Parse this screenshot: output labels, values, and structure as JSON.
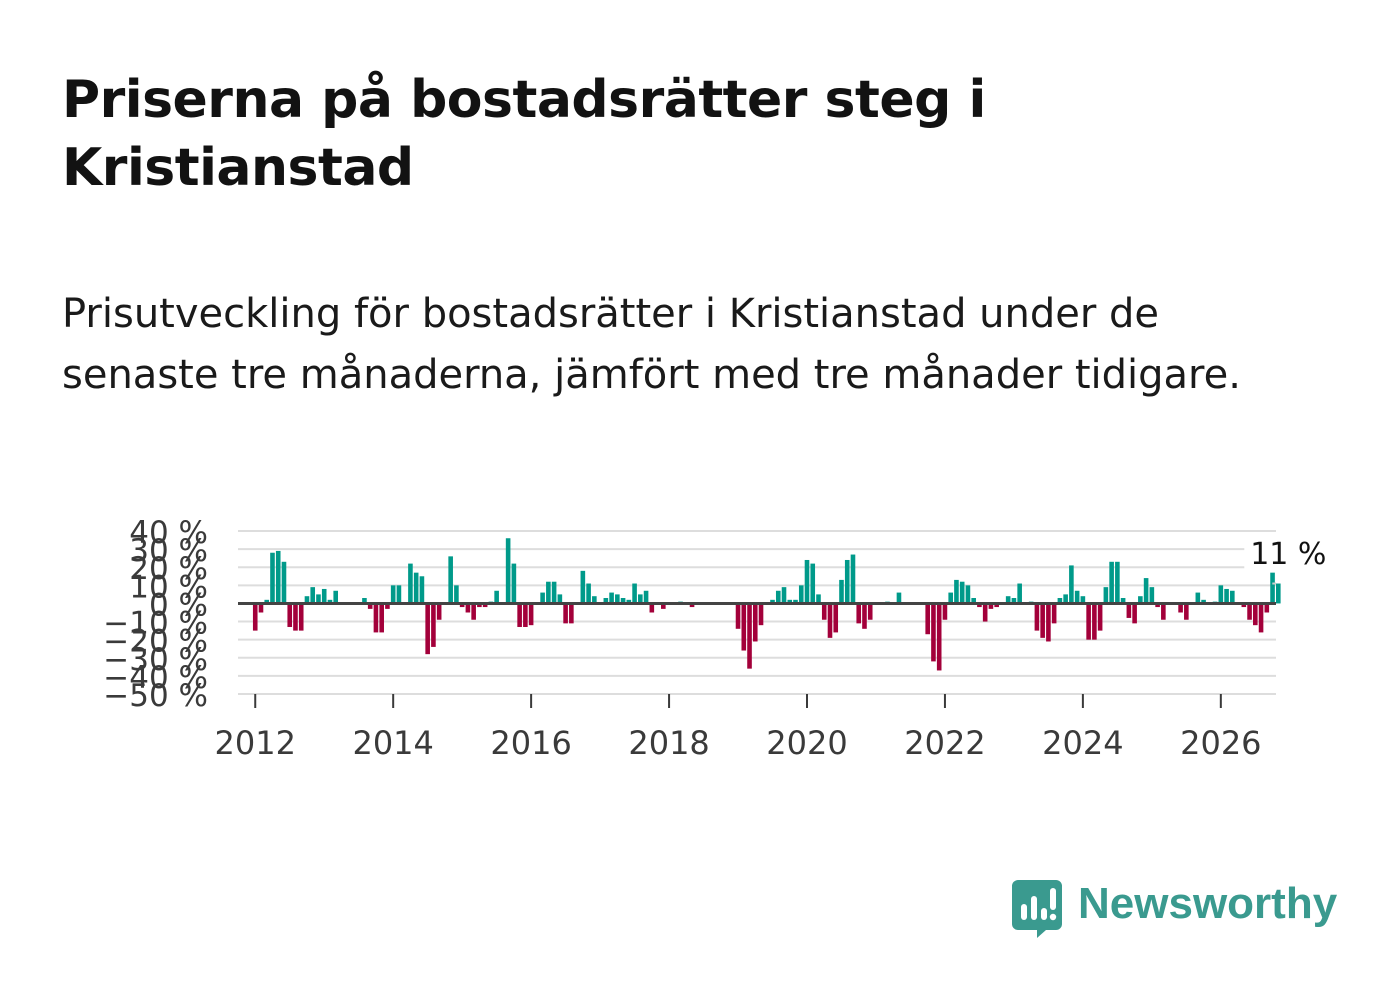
{
  "title": "Priserna på bostadsrätter steg i Kristianstad",
  "subtitle": "Prisutveckling för bostadsrätter i Kristianstad under de senaste tre månaderna, jämfört med tre månader tidigare.",
  "brand": "Newsworthy",
  "colors": {
    "positive": "#009a8a",
    "negative": "#a3003a",
    "grid": "#dddddd",
    "zero": "#444444",
    "brand": "#3a9a8f"
  },
  "chart_data": {
    "type": "bar",
    "ylabel": "",
    "xlabel": "",
    "ylim": [
      -50,
      40
    ],
    "yticks": [
      -50,
      -40,
      -30,
      -20,
      -10,
      0,
      10,
      20,
      30,
      40
    ],
    "ytick_labels": [
      "−50 %",
      "−40 %",
      "−30 %",
      "−20 %",
      "−10 %",
      "0 %",
      "10 %",
      "20 %",
      "30 %",
      "40 %"
    ],
    "xlim": [
      2011.75,
      2026.8
    ],
    "xticks": [
      2012,
      2014,
      2016,
      2018,
      2020,
      2022,
      2024,
      2026
    ],
    "xtick_labels": [
      "2012",
      "2014",
      "2016",
      "2018",
      "2020",
      "2022",
      "2024",
      "2026"
    ],
    "start": 2012.0,
    "step": 0.0833333,
    "values": [
      -15,
      -5,
      2,
      28,
      29,
      23,
      -13,
      -15,
      -15,
      4,
      9,
      5,
      8,
      2,
      7,
      0,
      0,
      0,
      0,
      3,
      -3,
      -16,
      -16,
      -3,
      10,
      10,
      0,
      22,
      17,
      15,
      -28,
      -24,
      -9,
      0,
      26,
      10,
      -2,
      -5,
      -9,
      -2,
      -2,
      1,
      7,
      0,
      36,
      22,
      -13,
      -13,
      -12,
      0,
      6,
      12,
      12,
      5,
      -11,
      -11,
      0,
      18,
      11,
      4,
      0,
      3,
      6,
      5,
      3,
      2,
      11,
      5,
      7,
      -5,
      0,
      -3,
      0,
      0,
      1,
      0,
      -2,
      0,
      0,
      0,
      0,
      0,
      0,
      0,
      -14,
      -26,
      -36,
      -21,
      -12,
      0,
      2,
      7,
      9,
      2,
      2,
      10,
      24,
      22,
      5,
      -9,
      -19,
      -16,
      13,
      24,
      27,
      -11,
      -14,
      -9,
      0,
      0,
      1,
      0,
      6,
      0,
      0,
      0,
      0,
      -17,
      -32,
      -37,
      -9,
      6,
      13,
      12,
      10,
      3,
      -2,
      -10,
      -3,
      -2,
      0,
      4,
      3,
      11,
      0,
      1,
      -15,
      -19,
      -21,
      -11,
      3,
      5,
      21,
      7,
      4,
      -20,
      -20,
      -15,
      9,
      23,
      23,
      3,
      -8,
      -11,
      4,
      14,
      9,
      -2,
      -9,
      0,
      0,
      -5,
      -9,
      0,
      6,
      2,
      0,
      1,
      10,
      8,
      7,
      0,
      -2,
      -9,
      -12,
      -16,
      -5,
      17,
      11
    ]
  },
  "annotation": {
    "label": "11 %",
    "value": 11
  }
}
